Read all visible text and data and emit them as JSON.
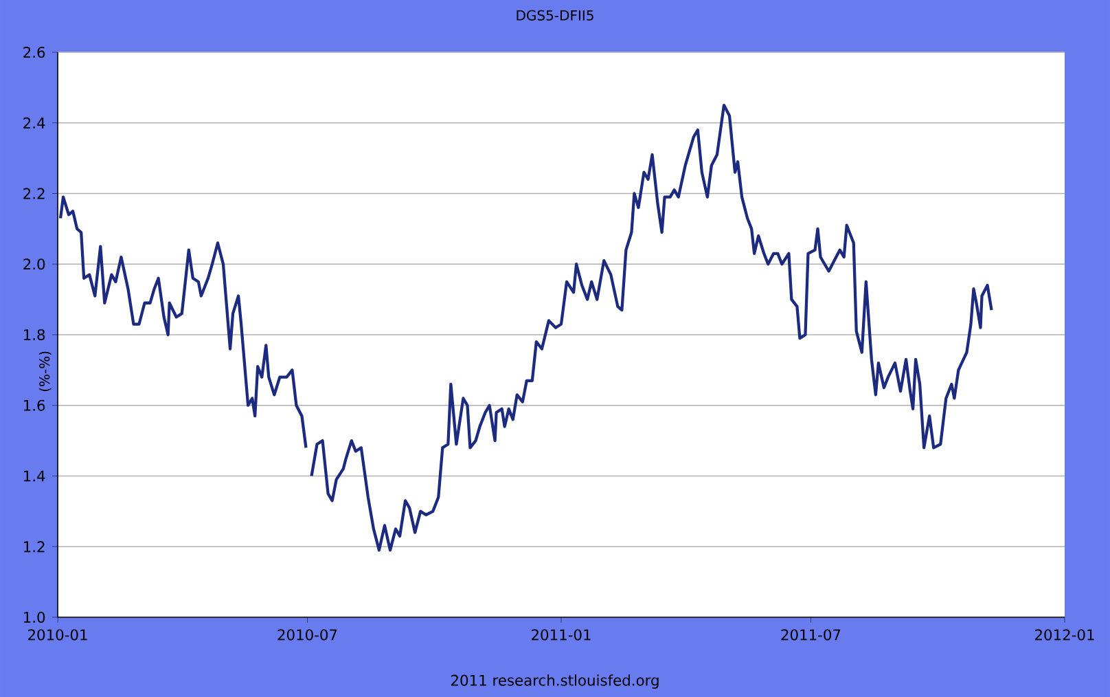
{
  "chart_data": {
    "type": "line",
    "title": "DGS5-DFII5",
    "ylabel": "(%-%)",
    "annotations": [
      "2011 research.stlouisfed.org"
    ],
    "xlim": [
      "2010-01-01",
      "2012-01-01"
    ],
    "xticks": [
      "2010-01",
      "2010-07",
      "2011-01",
      "2011-07",
      "2012-01"
    ],
    "ylim": [
      1.0,
      2.6
    ],
    "yticks": [
      {
        "value": 1.0,
        "label": "1.0"
      },
      1.2,
      1.4,
      1.6,
      1.8,
      {
        "value": 2.0,
        "label": "2.0"
      },
      2.2,
      2.4,
      2.6
    ],
    "grid": "y",
    "marker": "none",
    "line_style": "solid",
    "series": [
      {
        "color": "#1c2a80",
        "x": [
          "2010-01-03",
          "2010-01-05",
          "2010-01-09",
          "2010-01-12",
          "2010-01-15",
          "2010-01-18",
          "2010-01-20",
          "2010-01-24",
          "2010-01-28",
          "2010-02-01",
          "2010-02-04",
          "2010-02-09",
          "2010-02-12",
          "2010-02-16",
          "2010-02-21",
          "2010-02-25",
          "2010-03-01",
          "2010-03-05",
          "2010-03-09",
          "2010-03-12",
          "2010-03-15",
          "2010-03-19",
          "2010-03-22",
          "2010-03-23",
          "2010-03-28",
          "2010-04-01",
          "2010-04-06",
          "2010-04-09",
          "2010-04-13",
          "2010-04-15",
          "2010-04-20",
          "2010-04-23",
          "2010-04-27",
          "2010-05-01",
          "2010-05-06",
          "2010-05-08",
          "2010-05-12",
          "2010-05-14",
          "2010-05-19",
          "2010-05-22",
          "2010-05-24",
          "2010-05-26",
          "2010-05-29",
          "2010-06-01",
          "2010-06-03",
          "2010-06-07",
          "2010-06-11",
          "2010-06-16",
          "2010-06-20",
          "2010-06-23",
          "2010-06-27",
          "2010-06-30",
          "2010-07-02",
          "2010-07-04",
          "2010-07-08",
          "2010-07-12",
          "2010-07-16",
          "2010-07-19",
          "2010-07-22",
          "2010-07-27",
          "2010-07-29",
          "2010-08-02",
          "2010-08-05",
          "2010-08-09",
          "2010-08-14",
          "2010-08-18",
          "2010-08-22",
          "2010-08-26",
          "2010-08-30",
          "2010-09-03",
          "2010-09-06",
          "2010-09-10",
          "2010-09-13",
          "2010-09-17",
          "2010-09-21",
          "2010-09-25",
          "2010-09-30",
          "2010-10-04",
          "2010-10-07",
          "2010-10-11",
          "2010-10-13",
          "2010-10-17",
          "2010-10-22",
          "2010-10-25",
          "2010-10-27",
          "2010-10-31",
          "2010-11-03",
          "2010-11-07",
          "2010-11-10",
          "2010-11-14",
          "2010-11-15",
          "2010-11-19",
          "2010-11-21",
          "2010-11-24",
          "2010-11-27",
          "2010-11-30",
          "2010-12-04",
          "2010-12-07",
          "2010-12-11",
          "2010-12-14",
          "2010-12-18",
          "2010-12-23",
          "2010-12-28",
          "2011-01-01",
          "2011-01-05",
          "2011-01-10",
          "2011-01-12",
          "2011-01-16",
          "2011-01-20",
          "2011-01-23",
          "2011-01-27",
          "2011-02-01",
          "2011-02-06",
          "2011-02-11",
          "2011-02-14",
          "2011-02-17",
          "2011-02-21",
          "2011-02-23",
          "2011-02-26",
          "2011-03-02",
          "2011-03-05",
          "2011-03-08",
          "2011-03-12",
          "2011-03-15",
          "2011-03-17",
          "2011-03-21",
          "2011-03-24",
          "2011-03-27",
          "2011-04-01",
          "2011-04-07",
          "2011-04-10",
          "2011-04-13",
          "2011-04-17",
          "2011-04-20",
          "2011-04-24",
          "2011-04-29",
          "2011-05-03",
          "2011-05-07",
          "2011-05-09",
          "2011-05-12",
          "2011-05-16",
          "2011-05-19",
          "2011-05-21",
          "2011-05-24",
          "2011-05-28",
          "2011-05-31",
          "2011-06-04",
          "2011-06-07",
          "2011-06-10",
          "2011-06-15",
          "2011-06-17",
          "2011-06-21",
          "2011-06-23",
          "2011-06-27",
          "2011-06-29",
          "2011-07-04",
          "2011-07-06",
          "2011-07-08",
          "2011-07-14",
          "2011-07-18",
          "2011-07-22",
          "2011-07-25",
          "2011-07-27",
          "2011-08-01",
          "2011-08-03",
          "2011-08-07",
          "2011-08-10",
          "2011-08-14",
          "2011-08-17",
          "2011-08-19",
          "2011-08-23",
          "2011-08-26",
          "2011-08-31",
          "2011-09-04",
          "2011-09-08",
          "2011-09-11",
          "2011-09-13",
          "2011-09-15",
          "2011-09-18",
          "2011-09-21",
          "2011-09-25",
          "2011-09-28",
          "2011-10-03",
          "2011-10-07",
          "2011-10-11",
          "2011-10-13",
          "2011-10-16",
          "2011-10-22",
          "2011-10-25",
          "2011-10-27",
          "2011-10-29",
          "2011-11-01",
          "2011-11-02",
          "2011-11-06",
          "2011-11-09"
        ],
        "values": [
          2.13,
          2.19,
          2.14,
          2.15,
          2.1,
          2.09,
          1.96,
          1.97,
          1.91,
          2.05,
          1.89,
          1.97,
          1.95,
          2.02,
          1.93,
          1.83,
          1.83,
          1.89,
          1.89,
          1.93,
          1.96,
          1.85,
          1.8,
          1.89,
          1.85,
          1.86,
          2.04,
          1.96,
          1.95,
          1.91,
          1.96,
          2.0,
          2.06,
          2.0,
          1.76,
          1.86,
          1.91,
          1.83,
          1.6,
          1.62,
          1.57,
          1.71,
          1.68,
          1.77,
          1.68,
          1.63,
          1.68,
          1.68,
          1.7,
          1.6,
          1.57,
          1.48,
          null,
          1.4,
          1.49,
          1.5,
          1.35,
          1.33,
          1.39,
          1.42,
          1.45,
          1.5,
          1.47,
          1.48,
          1.34,
          1.25,
          1.19,
          1.26,
          1.19,
          1.25,
          1.23,
          1.33,
          1.31,
          1.24,
          1.3,
          1.29,
          1.3,
          1.34,
          1.48,
          1.49,
          1.66,
          1.49,
          1.62,
          1.6,
          1.48,
          1.5,
          1.54,
          1.58,
          1.6,
          1.5,
          1.58,
          1.59,
          1.54,
          1.59,
          1.56,
          1.63,
          1.61,
          1.67,
          1.67,
          1.78,
          1.76,
          1.84,
          1.82,
          1.83,
          1.95,
          1.92,
          2.0,
          1.94,
          1.9,
          1.95,
          1.9,
          2.01,
          1.97,
          1.88,
          1.87,
          2.04,
          2.09,
          2.2,
          2.16,
          2.26,
          2.24,
          2.31,
          2.17,
          2.09,
          2.19,
          2.19,
          2.21,
          2.19,
          2.28,
          2.36,
          2.38,
          2.26,
          2.19,
          2.28,
          2.31,
          2.45,
          2.42,
          2.26,
          2.29,
          2.19,
          2.13,
          2.1,
          2.03,
          2.08,
          2.03,
          2.0,
          2.03,
          2.03,
          2.0,
          2.03,
          1.9,
          1.88,
          1.79,
          1.8,
          2.03,
          2.04,
          2.1,
          2.02,
          1.98,
          2.01,
          2.04,
          2.02,
          2.11,
          2.06,
          1.81,
          1.75,
          1.95,
          1.73,
          1.63,
          1.72,
          1.65,
          1.68,
          1.72,
          1.64,
          1.73,
          1.64,
          1.59,
          1.73,
          1.66,
          1.48,
          1.57,
          1.48,
          1.49,
          1.62,
          1.66,
          1.62,
          1.7,
          1.75,
          1.83,
          1.93,
          1.89,
          1.82,
          1.91,
          1.94,
          1.87
        ]
      }
    ]
  }
}
